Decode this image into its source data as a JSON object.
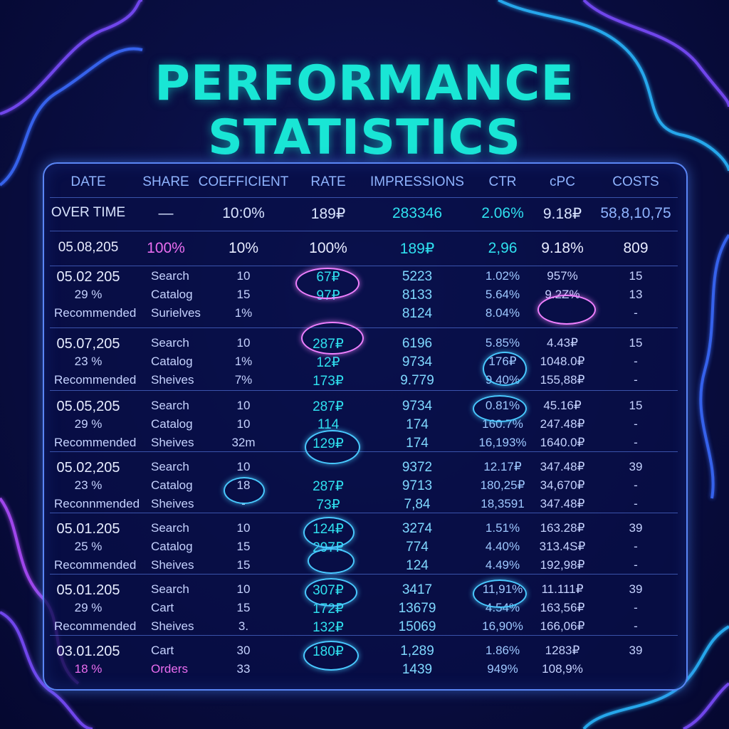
{
  "title": {
    "line1": "PERFORMANCE",
    "line2": "STATISTICS"
  },
  "columns": [
    "DATE",
    "SHARE",
    "COEFFICIENT",
    "RATE",
    "IMPRESSIONS",
    "CTR",
    "cPC",
    "COSTS"
  ],
  "summary_rows": [
    {
      "cells": [
        "OVER TIME",
        "—",
        "10:0%",
        "189₽",
        "283346",
        "2.06%",
        "9.18₽",
        "58,8,10,75"
      ]
    },
    {
      "cells": [
        "05.08,205",
        "100%",
        "10%",
        "100%",
        "189₽",
        "2,96",
        "9.18%",
        "809"
      ]
    }
  ],
  "groups": [
    {
      "rows": [
        [
          "05.02 205",
          "Search",
          "10",
          "67₽",
          "5223",
          "1.02%",
          "957%",
          "15"
        ],
        [
          "29 %",
          "Catalog",
          "15",
          "97₽",
          "8133",
          "5.64%",
          "9.2Z%",
          "13"
        ],
        [
          "Recommended",
          "Surielves",
          "1%",
          "",
          "8124",
          "8.04%",
          "",
          "-"
        ]
      ]
    },
    {
      "rows": [
        [
          "05.07,205",
          "Search",
          "10",
          "287₽",
          "6196",
          "5.85%",
          "4.43₽",
          "15"
        ],
        [
          "23 %",
          "Catalog",
          "1%",
          "12₽",
          "9734",
          "176₽",
          "1048.0₽",
          "-"
        ],
        [
          "Recommended",
          "Sheives",
          "7%",
          "173₽",
          "9.779",
          "9.40%",
          "155,88₽",
          "-"
        ]
      ]
    },
    {
      "rows": [
        [
          "05.05,205",
          "Search",
          "10",
          "287₽",
          "9734",
          "0.81%",
          "45.16₽",
          "15"
        ],
        [
          "29 %",
          "Catalog",
          "10",
          "114",
          "174",
          "160.7%",
          "247.48₽",
          "-"
        ],
        [
          "Recommended",
          "Sheives",
          "32m",
          "129₽",
          "174",
          "16,193%",
          "1640.0₽",
          "-"
        ]
      ]
    },
    {
      "rows": [
        [
          "05.02,205",
          "Search",
          "10",
          "",
          "9372",
          "12.17₽",
          "347.48₽",
          "39"
        ],
        [
          "23 %",
          "Catalog",
          "18",
          "287₽",
          "9713",
          "180,25₽",
          "34,670₽",
          "-"
        ],
        [
          "Reconnmended",
          "Sheives",
          "-",
          "73₽",
          "7,84",
          "18,3591",
          "347.48₽",
          "-"
        ]
      ]
    },
    {
      "rows": [
        [
          "05.01.205",
          "Search",
          "10",
          "124₽",
          "3274",
          "1.51%",
          "163.28₽",
          "39"
        ],
        [
          "25 %",
          "Catalog",
          "15",
          "297₽",
          "774",
          "4.40%",
          "313.4S₽",
          "-"
        ],
        [
          "Recommended",
          "Sheives",
          "15",
          "",
          "124",
          "4.49%",
          "192,98₽",
          "-"
        ]
      ]
    },
    {
      "rows": [
        [
          "05.01.205",
          "Search",
          "10",
          "307₽",
          "3417",
          "11,91%",
          "11.111₽",
          "39"
        ],
        [
          "29 %",
          "Cart",
          "15",
          "172₽",
          "13679",
          "4.54%",
          "163,56₽",
          "-"
        ],
        [
          "Recommended",
          "Sheives",
          "3.",
          "132₽",
          "15069",
          "16,90%",
          "166,06₽",
          "-"
        ]
      ]
    },
    {
      "rows": [
        [
          "03.01.205",
          "Cart",
          "30",
          "180₽",
          "1,289",
          "1.86%",
          "1283₽",
          "39"
        ],
        [
          "18 %",
          "Orders",
          "33",
          "",
          "1439",
          "949%",
          "108,9%",
          ""
        ]
      ]
    }
  ],
  "colors": {
    "title": "#19e6d5",
    "header": "#8fb4ff",
    "text": "#c6d3ff",
    "accent_cyan": "#2fe0ef",
    "accent_pink": "#ea6df0",
    "ring": "#49c9ff",
    "ring_pink": "#f080ff"
  }
}
